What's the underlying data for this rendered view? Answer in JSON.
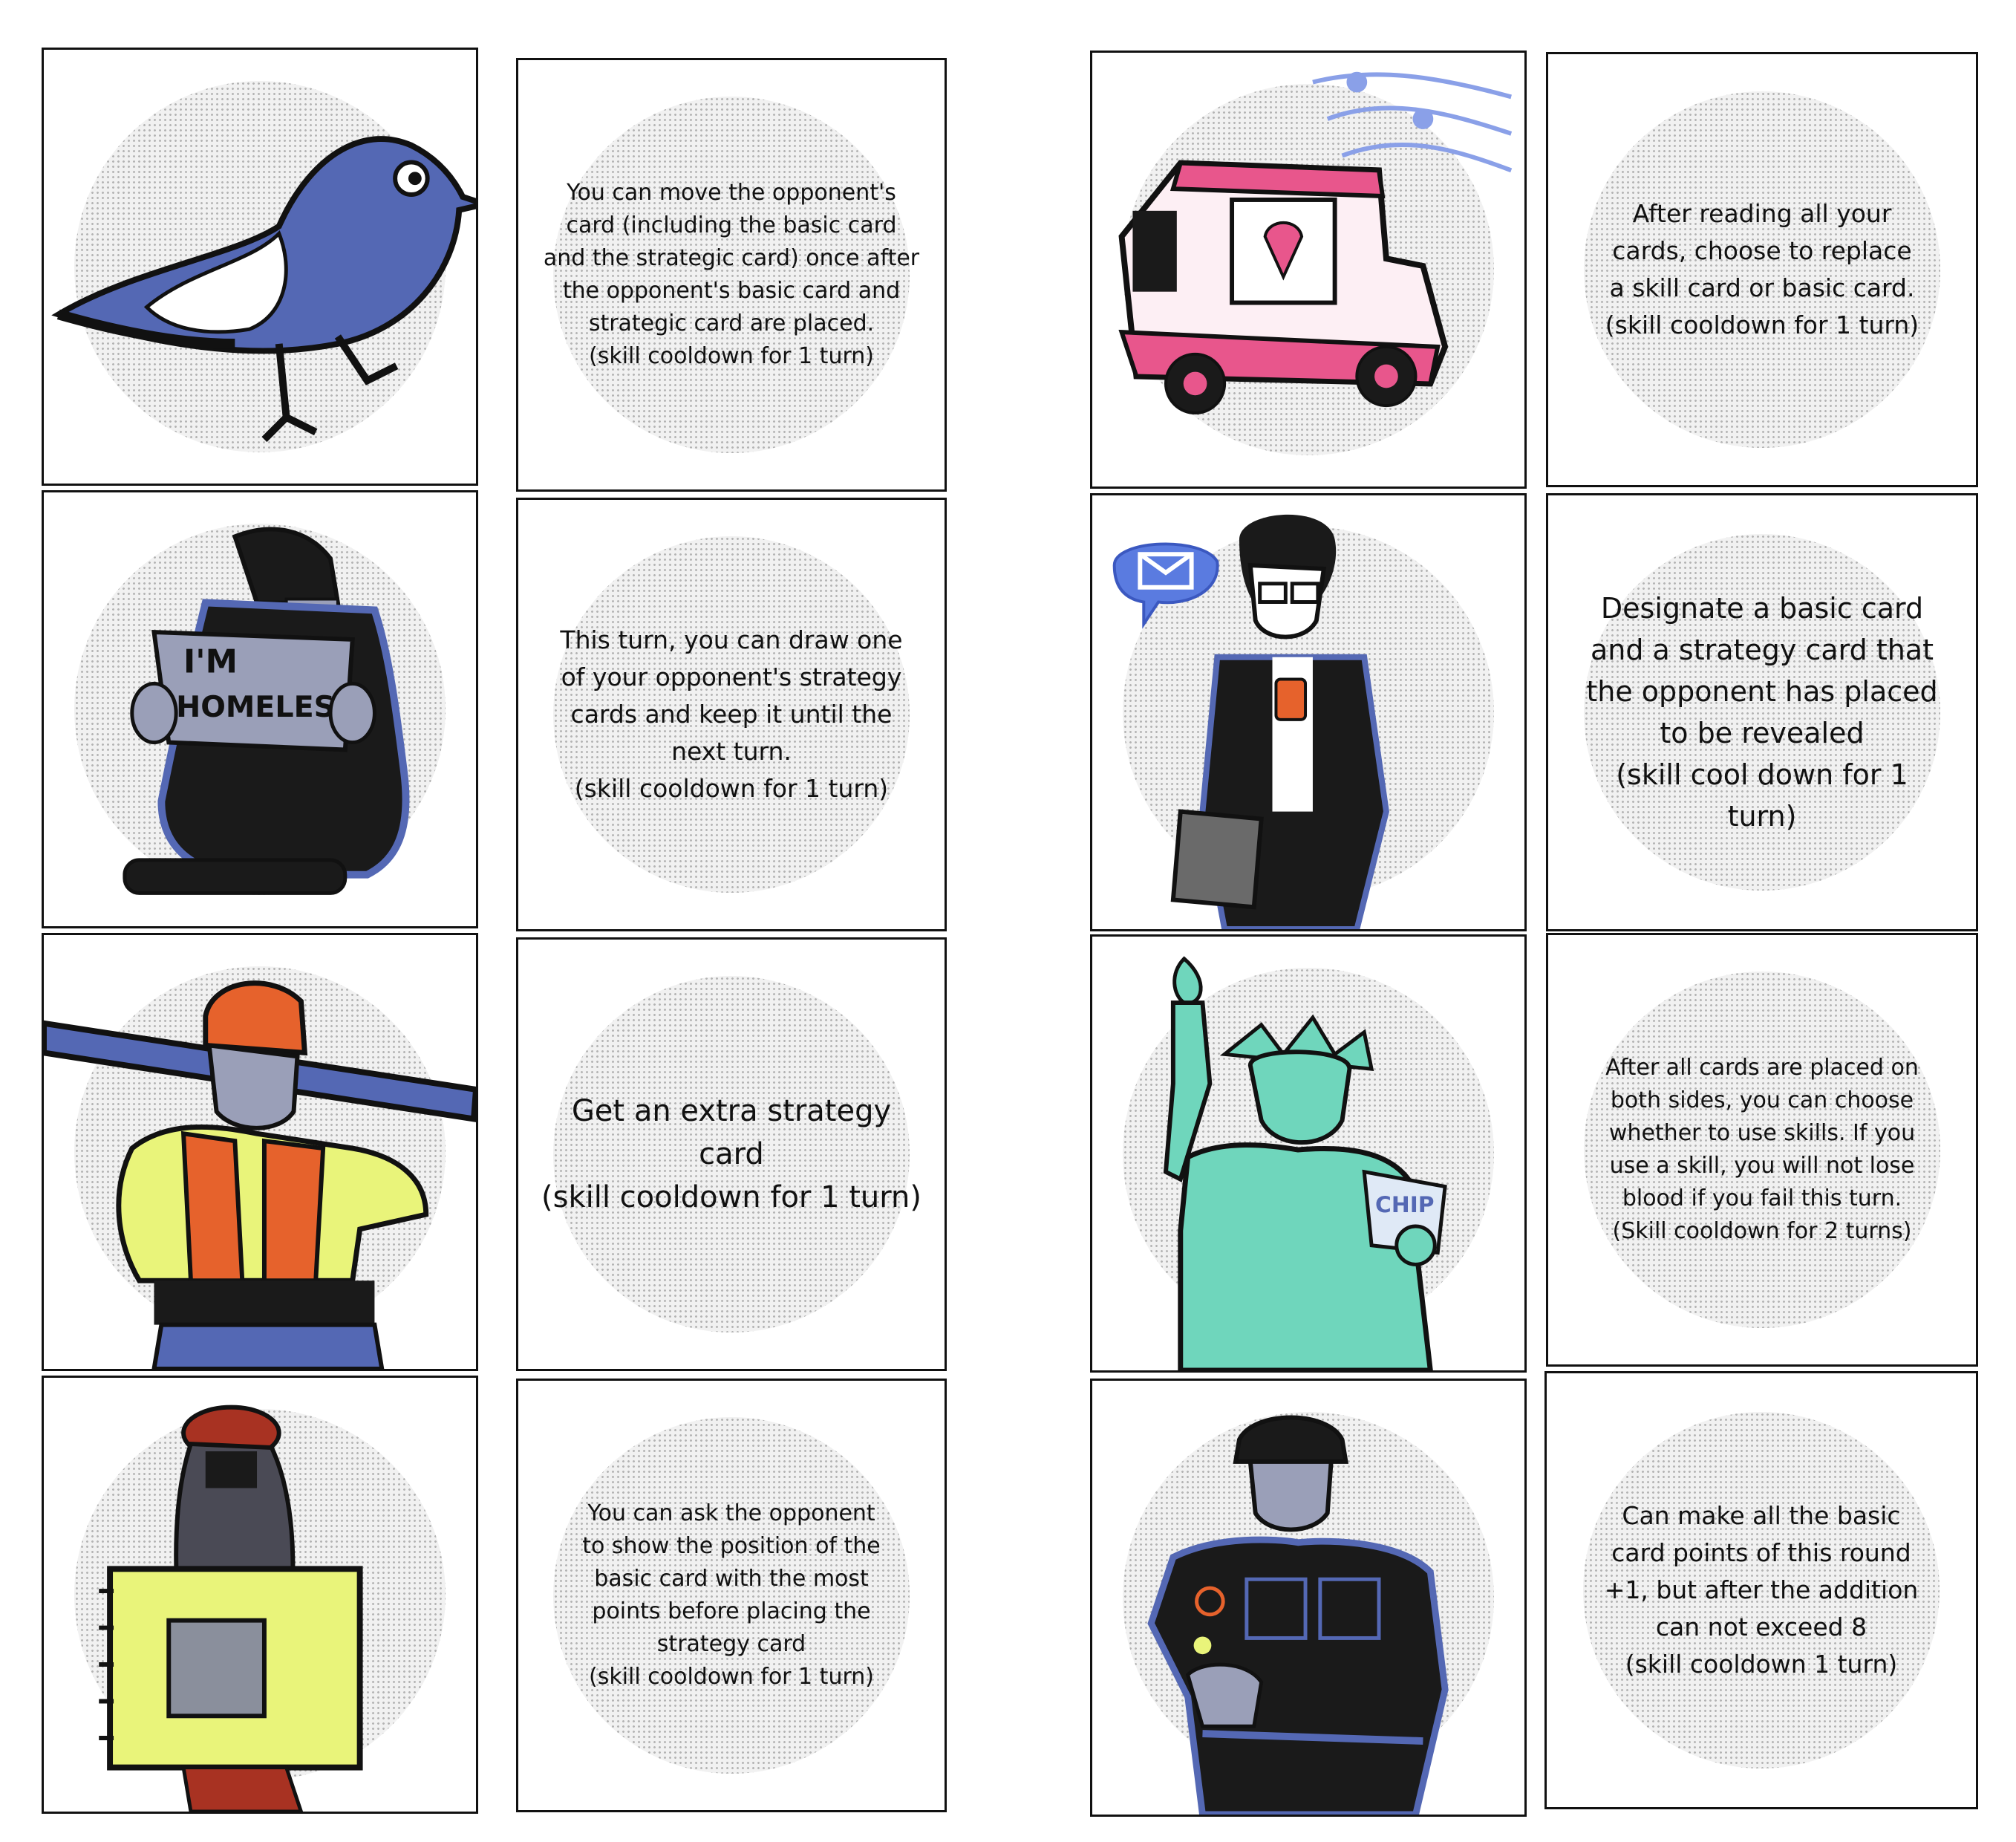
{
  "colors": {
    "ink": "#111111",
    "blue": "#5468b4",
    "pink": "#e8568c",
    "yellow": "#e9f47a",
    "orange": "#e6622c",
    "teal": "#6fd6bc",
    "red_brown": "#a83222",
    "grey": "#9a9fb8"
  },
  "cards": [
    {
      "illustration": "blue-bird",
      "text": "You can move the opponent's\ncard (including the basic card\nand the strategic card) once after\nthe opponent's basic card and\nstrategic card are placed.\n(skill cooldown for 1 turn)"
    },
    {
      "illustration": "homeless-person",
      "sign_line1": "I'M",
      "sign_line2": "HOMELESS",
      "text": "This turn, you can draw one\nof your opponent's strategy\ncards and keep it until the\nnext turn.\n(skill cooldown for 1 turn)"
    },
    {
      "illustration": "construction-worker",
      "text": "Get an extra strategy card\n(skill cooldown for 1 turn)"
    },
    {
      "illustration": "student-with-backpack",
      "text": "You can ask the opponent\nto show the position of the\nbasic card with the most\npoints before placing the\nstrategy card\n(skill cooldown for 1 turn)"
    },
    {
      "illustration": "ice-cream-truck",
      "text": "After reading all your\ncards, choose to replace\na skill card or basic card.\n(skill cooldown for 1 turn)"
    },
    {
      "illustration": "businessman-with-phone",
      "text": "Designate a basic card\nand a strategy card that\nthe opponent has placed\nto be revealed\n(skill cool down for 1\nturn)"
    },
    {
      "illustration": "statue-of-liberty",
      "bag_text": "CHIP",
      "text": "After all cards are placed on\nboth sides, you can choose\nwhether to use skills.  If you\nuse a skill, you will not lose\nblood if you fail this turn.\n(Skill cooldown for 2 turns)"
    },
    {
      "illustration": "police-officer",
      "text": "Can make all the basic\ncard points of this round\n+1, but after the addition\ncan not exceed 8\n(skill cooldown 1 turn)"
    }
  ]
}
